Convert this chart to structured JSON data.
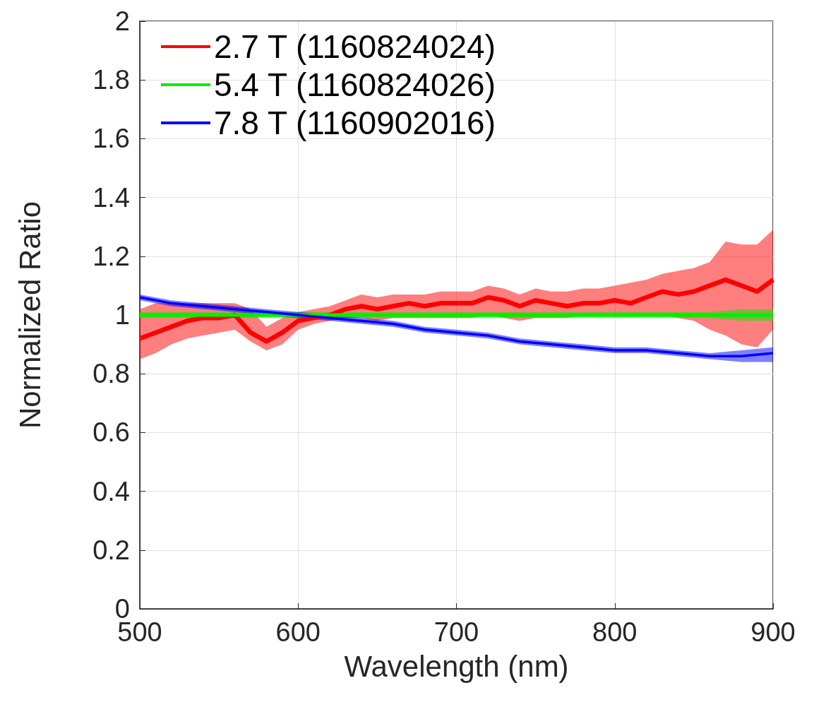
{
  "chart_data": {
    "type": "line",
    "xlabel": "Wavelength (nm)",
    "ylabel": "Normalized Ratio",
    "xlim": [
      500,
      900
    ],
    "xticks": [
      500,
      600,
      700,
      800,
      900
    ],
    "ylim": [
      0,
      2
    ],
    "yticks": [
      0,
      0.2,
      0.4,
      0.6,
      0.8,
      1,
      1.2,
      1.4,
      1.6,
      1.8,
      2
    ],
    "grid": true,
    "legend": "top left",
    "marker": "none",
    "line_style": "solid",
    "series": [
      {
        "name": "2.7 T (1160824024)",
        "color": "#ff0000",
        "x": [
          500,
          510,
          520,
          530,
          540,
          550,
          560,
          570,
          580,
          590,
          600,
          610,
          620,
          630,
          640,
          650,
          660,
          670,
          680,
          690,
          700,
          710,
          720,
          730,
          740,
          750,
          760,
          770,
          780,
          790,
          800,
          810,
          820,
          830,
          840,
          850,
          860,
          870,
          880,
          890,
          900
        ],
        "values": [
          0.92,
          0.94,
          0.96,
          0.98,
          0.99,
          0.99,
          1.0,
          0.94,
          0.91,
          0.94,
          0.98,
          0.99,
          1.0,
          1.02,
          1.03,
          1.02,
          1.03,
          1.04,
          1.03,
          1.04,
          1.04,
          1.04,
          1.06,
          1.05,
          1.03,
          1.05,
          1.04,
          1.03,
          1.04,
          1.04,
          1.05,
          1.04,
          1.06,
          1.08,
          1.07,
          1.08,
          1.1,
          1.12,
          1.1,
          1.08,
          1.12
        ],
        "lower": [
          0.85,
          0.87,
          0.9,
          0.92,
          0.93,
          0.94,
          0.95,
          0.91,
          0.88,
          0.9,
          0.95,
          0.97,
          0.98,
          0.99,
          0.99,
          0.98,
          0.99,
          0.99,
          0.99,
          0.99,
          0.99,
          0.99,
          1.0,
          0.99,
          0.98,
          0.99,
          0.99,
          0.99,
          1.0,
          1.0,
          1.0,
          1.0,
          1.0,
          1.0,
          0.99,
          0.98,
          0.95,
          0.93,
          0.9,
          0.89,
          0.95
        ],
        "upper": [
          1.02,
          1.04,
          1.04,
          1.04,
          1.04,
          1.04,
          1.04,
          1.02,
          0.96,
          0.99,
          1.01,
          1.02,
          1.03,
          1.05,
          1.07,
          1.06,
          1.07,
          1.07,
          1.07,
          1.08,
          1.08,
          1.08,
          1.1,
          1.09,
          1.07,
          1.09,
          1.08,
          1.08,
          1.09,
          1.09,
          1.1,
          1.11,
          1.12,
          1.14,
          1.15,
          1.16,
          1.18,
          1.25,
          1.24,
          1.24,
          1.29
        ]
      },
      {
        "name": "5.4 T (1160824026)",
        "color": "#00ee00",
        "x": [
          500,
          520,
          540,
          560,
          580,
          600,
          620,
          640,
          660,
          680,
          700,
          720,
          740,
          760,
          780,
          800,
          820,
          840,
          860,
          880,
          900
        ],
        "values": [
          1.0,
          1.0,
          1.0,
          1.0,
          1.0,
          1.0,
          1.0,
          1.0,
          1.0,
          1.0,
          1.0,
          1.0,
          1.0,
          1.0,
          1.0,
          1.0,
          1.0,
          1.0,
          1.0,
          1.0,
          1.0
        ],
        "lower": [
          0.99,
          0.99,
          0.99,
          0.99,
          0.99,
          0.99,
          0.99,
          0.99,
          0.99,
          0.99,
          0.99,
          0.99,
          0.99,
          0.99,
          0.99,
          0.99,
          0.99,
          0.99,
          0.99,
          0.98,
          0.98
        ],
        "upper": [
          1.01,
          1.01,
          1.01,
          1.01,
          1.01,
          1.01,
          1.01,
          1.01,
          1.01,
          1.01,
          1.01,
          1.01,
          1.01,
          1.01,
          1.01,
          1.01,
          1.01,
          1.01,
          1.01,
          1.02,
          1.02
        ]
      },
      {
        "name": "7.8 T (1160902016)",
        "color": "#0000ff",
        "x": [
          500,
          520,
          540,
          560,
          580,
          600,
          620,
          640,
          660,
          680,
          700,
          720,
          740,
          760,
          780,
          800,
          820,
          840,
          860,
          880,
          900
        ],
        "values": [
          1.06,
          1.04,
          1.03,
          1.02,
          1.01,
          1.0,
          0.99,
          0.98,
          0.97,
          0.95,
          0.94,
          0.93,
          0.91,
          0.9,
          0.89,
          0.88,
          0.88,
          0.87,
          0.86,
          0.86,
          0.87
        ],
        "lower": [
          1.05,
          1.03,
          1.02,
          1.01,
          1.0,
          0.99,
          0.98,
          0.97,
          0.96,
          0.94,
          0.93,
          0.92,
          0.9,
          0.89,
          0.88,
          0.87,
          0.87,
          0.86,
          0.85,
          0.84,
          0.84
        ],
        "upper": [
          1.07,
          1.05,
          1.04,
          1.03,
          1.02,
          1.01,
          1.0,
          0.99,
          0.98,
          0.96,
          0.95,
          0.94,
          0.92,
          0.91,
          0.9,
          0.89,
          0.89,
          0.88,
          0.87,
          0.88,
          0.89
        ]
      }
    ]
  }
}
